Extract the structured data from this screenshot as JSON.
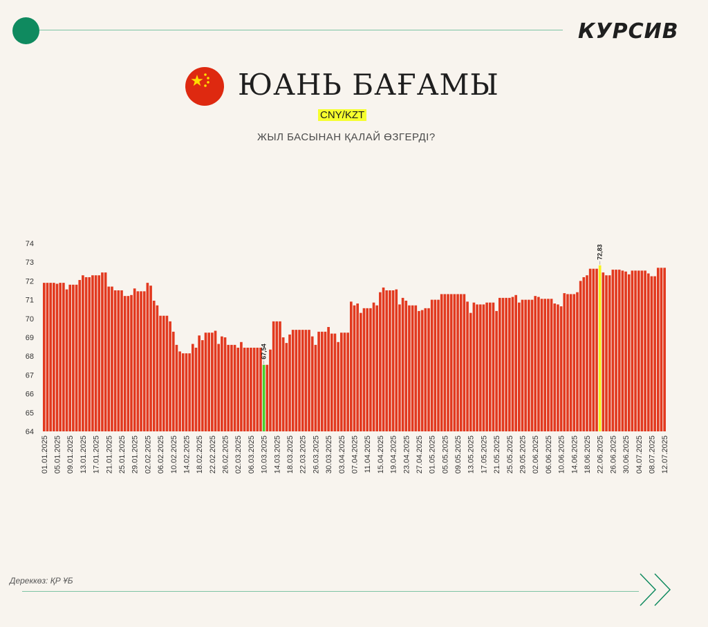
{
  "brand": "КУРСИВ",
  "title": "ЮАНЬ БАҒАМЫ",
  "pair": "CNY/KZT",
  "subtitle": "ЖЫЛ БАСЫНАН ҚАЛАЙ ӨЗГЕРДІ?",
  "source": "Дереккөз: ҚР ҰБ",
  "colors": {
    "bar": "#e2391f",
    "min": "#48d12b",
    "max": "#f7f21c",
    "accent": "#0f8a5f",
    "flag": "#de2910",
    "star": "#ffde00"
  },
  "icons": {
    "flag": "china-flag-icon",
    "next": "chevron-right-icon"
  },
  "chart_data": {
    "type": "bar",
    "title": "",
    "xlabel": "",
    "ylabel": "",
    "ylim": [
      64,
      74
    ],
    "yticks": [
      64,
      65,
      66,
      67,
      68,
      69,
      70,
      71,
      72,
      73,
      74
    ],
    "grid": false,
    "start_date": "01.01.2025",
    "xtick_labels": [
      "01.01.2025",
      "05.01.2025",
      "09.01.2025",
      "13.01.2025",
      "17.01.2025",
      "21.01.2025",
      "25.01.2025",
      "29.01.2025",
      "02.02.2025",
      "06.02.2025",
      "10.02.2025",
      "14.02.2025",
      "18.02.2025",
      "22.02.2025",
      "26.02.2025",
      "02.03.2025",
      "06.03.2025",
      "10.03.2025",
      "14.03.2025",
      "18.03.2025",
      "22.03.2025",
      "26.03.2025",
      "30.03.2025",
      "03.04.2025",
      "07.04.2025",
      "11.04.2025",
      "15.04.2025",
      "19.04.2025",
      "23.04.2025",
      "27.04.2025",
      "01.05.2025",
      "05.05.2025",
      "09.05.2025",
      "13.05.2025",
      "17.05.2025",
      "21.05.2025",
      "25.05.2025",
      "29.05.2025",
      "02.06.2025",
      "06.06.2025",
      "10.06.2025",
      "14.06.2025",
      "18.06.2025",
      "22.06.2025",
      "26.06.2025",
      "30.06.2025",
      "04.07.2025",
      "08.07.2025",
      "12.07.2025"
    ],
    "values": [
      71.9,
      71.9,
      71.9,
      71.9,
      71.85,
      71.9,
      71.9,
      71.55,
      71.8,
      71.8,
      71.8,
      72.05,
      72.3,
      72.2,
      72.2,
      72.3,
      72.3,
      72.3,
      72.45,
      72.45,
      71.7,
      71.7,
      71.5,
      71.5,
      71.5,
      71.2,
      71.2,
      71.25,
      71.6,
      71.45,
      71.45,
      71.45,
      71.9,
      71.75,
      70.95,
      70.7,
      70.15,
      70.15,
      70.15,
      69.85,
      69.3,
      68.6,
      68.25,
      68.15,
      68.15,
      68.15,
      68.65,
      68.45,
      69.1,
      68.85,
      69.25,
      69.25,
      69.25,
      69.35,
      68.65,
      69.05,
      69.0,
      68.6,
      68.6,
      68.6,
      68.45,
      68.75,
      68.45,
      68.45,
      68.45,
      68.45,
      68.45,
      68.45,
      67.54,
      67.54,
      68.35,
      69.85,
      69.85,
      69.85,
      69.0,
      68.7,
      69.15,
      69.4,
      69.4,
      69.4,
      69.4,
      69.4,
      69.4,
      69.05,
      68.6,
      69.3,
      69.3,
      69.3,
      69.55,
      69.2,
      69.2,
      68.75,
      69.25,
      69.25,
      69.25,
      70.9,
      70.7,
      70.8,
      70.3,
      70.55,
      70.55,
      70.55,
      70.85,
      70.7,
      71.4,
      71.65,
      71.5,
      71.5,
      71.5,
      71.55,
      70.75,
      71.1,
      70.95,
      70.7,
      70.7,
      70.7,
      70.4,
      70.45,
      70.55,
      70.55,
      71.0,
      71.0,
      71.0,
      71.3,
      71.3,
      71.3,
      71.3,
      71.3,
      71.3,
      71.3,
      71.3,
      70.9,
      70.3,
      70.85,
      70.75,
      70.75,
      70.75,
      70.85,
      70.85,
      70.85,
      70.4,
      71.1,
      71.1,
      71.1,
      71.1,
      71.15,
      71.25,
      70.85,
      71.0,
      71.0,
      71.0,
      71.0,
      71.2,
      71.15,
      71.05,
      71.05,
      71.05,
      71.05,
      70.8,
      70.75,
      70.65,
      71.35,
      71.3,
      71.3,
      71.3,
      71.4,
      72.0,
      72.2,
      72.3,
      72.65,
      72.65,
      72.65,
      72.83,
      72.45,
      72.3,
      72.3,
      72.6,
      72.6,
      72.6,
      72.55,
      72.5,
      72.35,
      72.55,
      72.55,
      72.55,
      72.55,
      72.55,
      72.4,
      72.25,
      72.25,
      72.7,
      72.7,
      72.7
    ],
    "annotations": [
      {
        "label": "67,54",
        "value": 67.54,
        "date": "10.03.2025"
      },
      {
        "label": "72,83",
        "value": 72.83,
        "date": "22.06.2025"
      }
    ]
  }
}
